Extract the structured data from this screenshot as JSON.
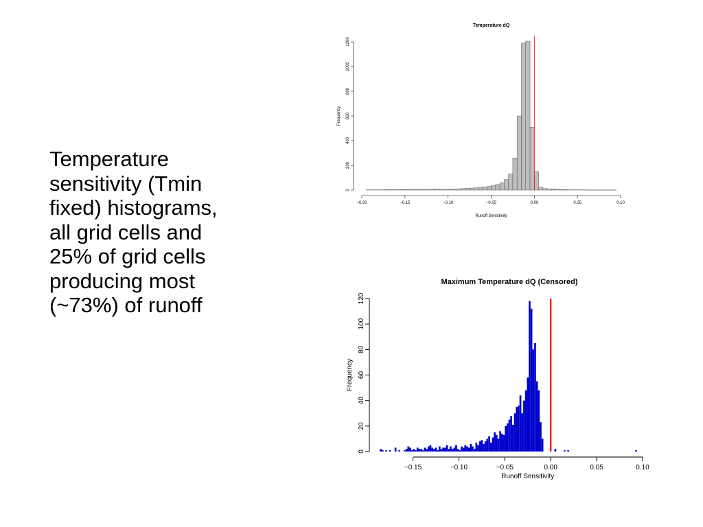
{
  "slide": {
    "text_lines": [
      "Temperature",
      "sensitivity (Tmin",
      "fixed) histograms,",
      "all grid cells and",
      "25% of grid cells",
      "producing most",
      "(~73%) of runoff"
    ]
  },
  "chart_data": [
    {
      "type": "bar",
      "title": "Temperature dQ",
      "xlabel": "Runoff Sensitivity",
      "ylabel": "Frequency",
      "xlim": [
        -0.2,
        0.1
      ],
      "ylim": [
        0,
        1200
      ],
      "x_ticks": [
        -0.2,
        -0.15,
        -0.1,
        -0.05,
        0.0,
        0.05,
        0.1
      ],
      "x_tick_labels": [
        "−0.20",
        "−0.15",
        "−0.10",
        "−0.05",
        "0.00",
        "0.05",
        "0.10"
      ],
      "y_ticks": [
        0,
        200,
        400,
        600,
        800,
        1000,
        1200
      ],
      "y_tick_labels": [
        "0",
        "200",
        "400",
        "600",
        "800",
        "1000",
        "1200"
      ],
      "bin_width": 0.005,
      "bin_starts": [
        -0.195,
        -0.19,
        -0.185,
        -0.18,
        -0.175,
        -0.17,
        -0.165,
        -0.16,
        -0.155,
        -0.15,
        -0.145,
        -0.14,
        -0.135,
        -0.13,
        -0.125,
        -0.12,
        -0.115,
        -0.11,
        -0.105,
        -0.1,
        -0.095,
        -0.09,
        -0.085,
        -0.08,
        -0.075,
        -0.07,
        -0.065,
        -0.06,
        -0.055,
        -0.05,
        -0.045,
        -0.04,
        -0.035,
        -0.03,
        -0.025,
        -0.02,
        -0.015,
        -0.01,
        -0.005,
        0.0,
        0.005,
        0.01,
        0.015,
        0.02,
        0.025,
        0.03,
        0.035,
        0.04,
        0.045,
        0.05,
        0.055,
        0.06,
        0.065,
        0.07,
        0.075,
        0.08,
        0.085,
        0.09
      ],
      "values": [
        2,
        2,
        2,
        2,
        3,
        4,
        3,
        3,
        5,
        5,
        6,
        5,
        6,
        6,
        7,
        9,
        8,
        7,
        7,
        8,
        9,
        10,
        12,
        14,
        16,
        18,
        22,
        26,
        30,
        36,
        45,
        60,
        85,
        130,
        260,
        600,
        1190,
        1205,
        510,
        150,
        25,
        12,
        8,
        10,
        6,
        4,
        3,
        2,
        2,
        2,
        2,
        1,
        1,
        1,
        1,
        1,
        1,
        1
      ],
      "bar_color": "#bebebe",
      "reference_line": {
        "x": 0.0,
        "color": "#ff0000"
      }
    },
    {
      "type": "bar",
      "title": "Maximum Temperature dQ (Censored)",
      "xlabel": "Runoff Sensitivity",
      "ylabel": "Frequency",
      "xlim": [
        -0.19,
        0.1
      ],
      "ylim": [
        0,
        120
      ],
      "x_ticks": [
        -0.15,
        -0.1,
        -0.05,
        0.0,
        0.05,
        0.1
      ],
      "x_tick_labels": [
        "−0.15",
        "−0.10",
        "−0.05",
        "0.00",
        "0.05",
        "0.10"
      ],
      "y_ticks": [
        0,
        20,
        40,
        60,
        80,
        100,
        120
      ],
      "y_tick_labels": [
        "0",
        "20",
        "40",
        "60",
        "80",
        "100",
        "120"
      ],
      "bin_width": 0.002,
      "bin_starts": [
        -0.186,
        -0.184,
        -0.18,
        -0.176,
        -0.17,
        -0.166,
        -0.16,
        -0.158,
        -0.156,
        -0.154,
        -0.152,
        -0.15,
        -0.148,
        -0.146,
        -0.144,
        -0.142,
        -0.14,
        -0.138,
        -0.136,
        -0.134,
        -0.132,
        -0.13,
        -0.128,
        -0.126,
        -0.124,
        -0.122,
        -0.12,
        -0.118,
        -0.116,
        -0.114,
        -0.112,
        -0.11,
        -0.108,
        -0.106,
        -0.104,
        -0.102,
        -0.1,
        -0.098,
        -0.096,
        -0.094,
        -0.092,
        -0.09,
        -0.088,
        -0.086,
        -0.084,
        -0.082,
        -0.08,
        -0.078,
        -0.076,
        -0.074,
        -0.072,
        -0.07,
        -0.068,
        -0.066,
        -0.064,
        -0.062,
        -0.06,
        -0.058,
        -0.056,
        -0.054,
        -0.052,
        -0.05,
        -0.048,
        -0.046,
        -0.044,
        -0.042,
        -0.04,
        -0.038,
        -0.036,
        -0.034,
        -0.032,
        -0.03,
        -0.028,
        -0.026,
        -0.024,
        -0.022,
        -0.02,
        -0.018,
        -0.016,
        -0.014,
        -0.012,
        -0.01,
        0.004,
        0.014,
        0.018,
        0.092
      ],
      "values": [
        2,
        1,
        1,
        1,
        3,
        1,
        1,
        2,
        4,
        3,
        1,
        2,
        1,
        3,
        2,
        2,
        1,
        3,
        2,
        4,
        5,
        3,
        2,
        3,
        1,
        4,
        2,
        3,
        3,
        5,
        2,
        4,
        2,
        3,
        5,
        2,
        1,
        4,
        3,
        5,
        4,
        3,
        6,
        4,
        2,
        7,
        5,
        8,
        9,
        6,
        8,
        10,
        12,
        7,
        11,
        15,
        13,
        10,
        16,
        14,
        13,
        20,
        22,
        25,
        28,
        21,
        30,
        35,
        36,
        44,
        30,
        40,
        48,
        58,
        118,
        112,
        80,
        85,
        55,
        48,
        23,
        10,
        2,
        1,
        1,
        1
      ],
      "bar_color": "#0000cd",
      "reference_line": {
        "x": 0.0,
        "color": "#ff0000"
      }
    }
  ]
}
